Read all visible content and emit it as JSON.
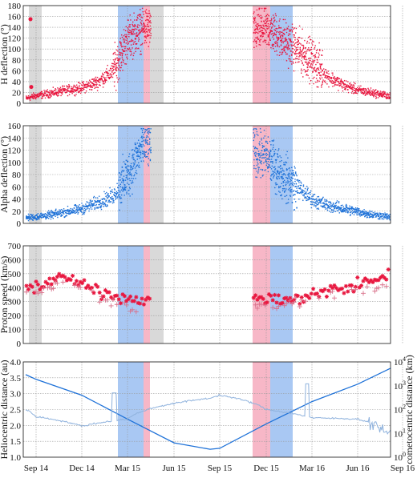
{
  "colors": {
    "gray_band": "#d9d9d9",
    "blue_band": "#a9c8f3",
    "pink_band": "#f7b7c7",
    "red": "#e8173f",
    "blue": "#1f72d8",
    "light_blue": "#8fb2dd",
    "grid": "#9a9a9a"
  },
  "x_ticks": [
    "Sep 14",
    "Dec 14",
    "Mar 15",
    "Jun 15",
    "Sep 15",
    "Dec 15",
    "Mar 16",
    "Jun 16",
    "Sep 16"
  ],
  "chart_data": [
    {
      "type": "scatter",
      "ylabel": "H deflection (°)",
      "ylim": [
        0,
        180
      ],
      "yticks": [
        "0",
        "20",
        "40",
        "60",
        "80",
        "100",
        "120",
        "140",
        "160",
        "180"
      ],
      "grid": true,
      "x": [
        "Aug 2014",
        "Sep 2014",
        "Oct 2014",
        "Nov 2014",
        "Dec 2014",
        "Jan 2015",
        "Feb 2015",
        "Mar 2015",
        "Apr 2015",
        "Nov 2015",
        "Dec 2015",
        "Jan 2016",
        "Feb 2016",
        "Mar 2016",
        "Apr 2016",
        "May 2016",
        "Jun 2016",
        "Jul 2016",
        "Aug 2016",
        "Sep 2016"
      ],
      "series": [
        {
          "values": [
            10,
            15,
            20,
            25,
            30,
            40,
            60,
            120,
            140,
            130,
            140,
            120,
            100,
            80,
            50,
            35,
            25,
            20,
            15,
            12
          ]
        }
      ]
    },
    {
      "type": "scatter",
      "ylabel": "Alpha deflection (°)",
      "ylim": [
        0,
        160
      ],
      "yticks": [
        "0",
        "20",
        "40",
        "60",
        "80",
        "100",
        "120",
        "140",
        "160"
      ],
      "grid": true,
      "x": [
        "Aug 2014",
        "Sep 2014",
        "Oct 2014",
        "Nov 2014",
        "Dec 2014",
        "Jan 2015",
        "Feb 2015",
        "Mar 2015",
        "Apr 2015",
        "Nov 2015",
        "Dec 2015",
        "Jan 2016",
        "Feb 2016",
        "Mar 2016",
        "Apr 2016",
        "May 2016",
        "Jun 2016",
        "Jul 2016",
        "Aug 2016",
        "Sep 2016"
      ],
      "series": [
        {
          "values": [
            10,
            12,
            15,
            20,
            25,
            35,
            45,
            80,
            130,
            120,
            110,
            80,
            60,
            40,
            30,
            25,
            20,
            15,
            12,
            10
          ]
        }
      ]
    },
    {
      "type": "scatter",
      "ylabel": "Proton speed (km/s)",
      "ylim": [
        0,
        700
      ],
      "yticks": [
        "0",
        "100",
        "200",
        "300",
        "400",
        "500",
        "600",
        "700"
      ],
      "grid": true,
      "x": [
        "Aug 2014",
        "Sep 2014",
        "Oct 2014",
        "Nov 2014",
        "Dec 2014",
        "Jan 2015",
        "Feb 2015",
        "Mar 2015",
        "Apr 2015",
        "Nov 2015",
        "Dec 2015",
        "Jan 2016",
        "Feb 2016",
        "Mar 2016",
        "Apr 2016",
        "May 2016",
        "Jun 2016",
        "Jul 2016",
        "Aug 2016",
        "Sep 2016"
      ],
      "series": [
        {
          "values": [
            380,
            400,
            450,
            480,
            420,
            380,
            350,
            330,
            300,
            320,
            330,
            300,
            320,
            350,
            380,
            400,
            420,
            450,
            480,
            500
          ]
        },
        {
          "values": [
            350,
            380,
            400,
            430,
            380,
            330,
            300,
            280,
            250,
            260,
            280,
            270,
            290,
            320,
            340,
            360,
            380,
            400,
            420,
            450
          ]
        }
      ]
    },
    {
      "type": "line",
      "ylabel": "Heliocentric distance (au)",
      "y2label": "cometocentric distance (km)",
      "ylim": [
        1.0,
        4.0
      ],
      "yticks": [
        "1.0",
        "1.5",
        "2.0",
        "2.5",
        "3.0",
        "3.5",
        "4.0"
      ],
      "y2scale": "log",
      "y2lim": [
        1,
        10000
      ],
      "y2ticks": [
        "10^0",
        "10^1",
        "10^2",
        "10^3",
        "10^4"
      ],
      "grid": true,
      "x": [
        "Aug 2014",
        "Sep 2014",
        "Dec 2014",
        "Mar 2015",
        "Jun 2015",
        "Aug 2015",
        "Sep 2015",
        "Dec 2015",
        "Mar 2016",
        "Jun 2016",
        "Sep 2016"
      ],
      "series": [
        {
          "values": [
            3.6,
            3.45,
            2.95,
            2.2,
            1.45,
            1.25,
            1.28,
            2.05,
            2.75,
            3.3,
            3.8
          ]
        },
        {
          "values": [
            100,
            50,
            20,
            40,
            180,
            300,
            400,
            100,
            45,
            40,
            8
          ]
        }
      ]
    }
  ]
}
